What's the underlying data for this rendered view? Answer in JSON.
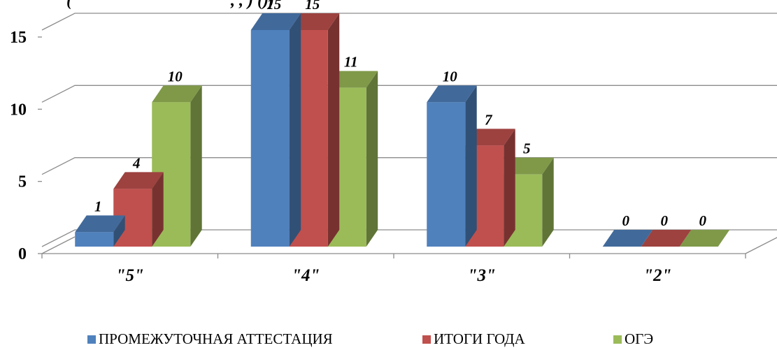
{
  "chart_data": {
    "type": "bar",
    "title": "(",
    "title_rest": ", , ) ())",
    "categories": [
      "\"5\"",
      "\"4\"",
      "\"3\"",
      "\"2\""
    ],
    "series": [
      {
        "name": "ПРОМЕЖУТОЧНАЯ АТТЕСТАЦИЯ",
        "values": [
          1,
          15,
          10,
          0
        ],
        "color": "#4F81BD"
      },
      {
        "name": "ИТОГИ ГОДА",
        "values": [
          4,
          15,
          7,
          0
        ],
        "color": "#C0504D"
      },
      {
        "name": "ОГЭ",
        "values": [
          10,
          11,
          5,
          0
        ],
        "color": "#9BBB59"
      }
    ],
    "yticks": [
      0,
      5,
      10,
      15
    ],
    "ylim": [
      0,
      15
    ],
    "grid": true,
    "legend_position": "bottom",
    "three_d": true
  }
}
